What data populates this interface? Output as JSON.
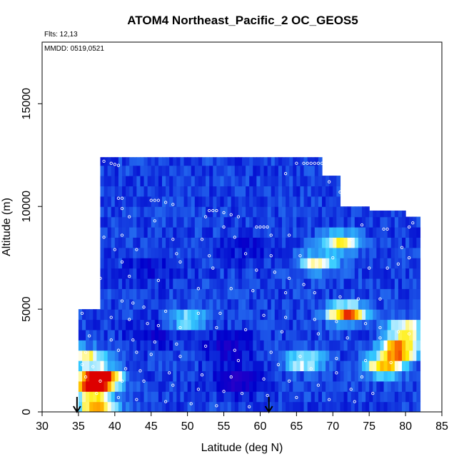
{
  "chart_data": {
    "type": "heatmap",
    "title": "ATOM4 Northeast_Pacific_2 OC_GEOS5",
    "annotations": {
      "flights": "Flts: 12,13",
      "dates": "MMDD: 0519,0521"
    },
    "xlabel": "Latitude (deg N)",
    "ylabel": "Altitude (m)",
    "xlim": [
      30,
      85
    ],
    "ylim": [
      0,
      18000
    ],
    "xticks": [
      "30",
      "35",
      "40",
      "45",
      "50",
      "55",
      "60",
      "65",
      "70",
      "75",
      "80",
      "85"
    ],
    "yticks": [
      "0",
      "5000",
      "10000",
      "15000"
    ],
    "grid": false,
    "legend": "none",
    "colormap": [
      "#2a00c8",
      "#0000cc",
      "#2266ee",
      "#33ccff",
      "#ffffff",
      "#ffee00",
      "#ff8800",
      "#dd0000"
    ],
    "arrow_markers_lat": [
      34.8,
      61.2
    ],
    "columns": [
      {
        "lat_start": 35.0,
        "lat_end": 38.0,
        "top": 5000
      },
      {
        "lat_start": 38.0,
        "lat_end": 43.0,
        "top": 12400
      },
      {
        "lat_start": 43.0,
        "lat_end": 60.5,
        "top": 12400
      },
      {
        "lat_start": 60.5,
        "lat_end": 63.5,
        "top": 12400
      },
      {
        "lat_start": 63.5,
        "lat_end": 68.5,
        "top": 12400
      },
      {
        "lat_start": 68.5,
        "lat_end": 71.0,
        "top": 11500
      },
      {
        "lat_start": 71.0,
        "lat_end": 75.0,
        "top": 10000
      },
      {
        "lat_start": 75.0,
        "lat_end": 80.0,
        "top": 9800
      },
      {
        "lat_start": 80.0,
        "lat_end": 82.0,
        "top": 9500
      }
    ],
    "hot_spots": [
      {
        "lat": 38.0,
        "alt": 1700,
        "value": 0.95
      },
      {
        "lat": 36.8,
        "alt": 1200,
        "value": 0.7
      },
      {
        "lat": 37.5,
        "alt": 300,
        "value": 0.6
      },
      {
        "lat": 72.0,
        "alt": 4800,
        "value": 0.7
      },
      {
        "lat": 79.0,
        "alt": 3000,
        "value": 0.8
      },
      {
        "lat": 77.0,
        "alt": 2200,
        "value": 0.55
      },
      {
        "lat": 71.0,
        "alt": 8300,
        "value": 0.45
      },
      {
        "lat": 68.0,
        "alt": 7300,
        "value": 0.4
      },
      {
        "lat": 80.0,
        "alt": 4000,
        "value": 0.5
      },
      {
        "lat": 50.0,
        "alt": 4500,
        "value": 0.3
      },
      {
        "lat": 36.0,
        "alt": 2700,
        "value": 0.45
      },
      {
        "lat": 66.0,
        "alt": 2500,
        "value": 0.4
      }
    ],
    "low_spots": [
      {
        "lat": 57.0,
        "alt": 1500,
        "value": 1.0
      },
      {
        "lat": 55.5,
        "alt": 3200,
        "value": 0.8
      },
      {
        "lat": 45.0,
        "alt": 3800,
        "value": 0.6
      },
      {
        "lat": 58.0,
        "alt": 8000,
        "value": 0.4
      },
      {
        "lat": 45.0,
        "alt": 7000,
        "value": 0.35
      }
    ],
    "flight_track": [
      [
        38.5,
        12200
      ],
      [
        39.5,
        12100
      ],
      [
        40.0,
        12050
      ],
      [
        40.5,
        12000
      ],
      [
        65.0,
        12100
      ],
      [
        66.0,
        12100
      ],
      [
        66.5,
        12100
      ],
      [
        67.0,
        12100
      ],
      [
        67.5,
        12100
      ],
      [
        68.0,
        12100
      ],
      [
        68.5,
        12100
      ],
      [
        69.0,
        12100
      ],
      [
        69.5,
        12100
      ],
      [
        70.0,
        12100
      ],
      [
        70.5,
        12100
      ],
      [
        71.0,
        12100
      ],
      [
        63.5,
        11600
      ],
      [
        69.5,
        11200
      ],
      [
        71.0,
        10700
      ],
      [
        40.5,
        10400
      ],
      [
        41.0,
        10400
      ],
      [
        45.0,
        10300
      ],
      [
        45.5,
        10300
      ],
      [
        46.0,
        10300
      ],
      [
        47.0,
        10200
      ],
      [
        48.0,
        10100
      ],
      [
        53.0,
        9800
      ],
      [
        53.5,
        9800
      ],
      [
        54.0,
        9800
      ],
      [
        55.0,
        9700
      ],
      [
        56.0,
        9600
      ],
      [
        57.0,
        9500
      ],
      [
        41.0,
        9900
      ],
      [
        42.0,
        9500
      ],
      [
        45.5,
        9300
      ],
      [
        52.5,
        9500
      ],
      [
        55.0,
        9000
      ],
      [
        59.5,
        9000
      ],
      [
        60.0,
        9000
      ],
      [
        60.5,
        9000
      ],
      [
        61.0,
        9000
      ],
      [
        74.0,
        9100
      ],
      [
        77.0,
        8900
      ],
      [
        77.5,
        8900
      ],
      [
        80.5,
        9000
      ],
      [
        81.0,
        9200
      ],
      [
        82.5,
        9500
      ],
      [
        38.5,
        8500
      ],
      [
        41.0,
        8600
      ],
      [
        48.0,
        8400
      ],
      [
        52.0,
        8400
      ],
      [
        56.5,
        8500
      ],
      [
        61.5,
        8600
      ],
      [
        64.0,
        8600
      ],
      [
        72.5,
        8400
      ],
      [
        79.5,
        8000
      ],
      [
        80.5,
        7500
      ],
      [
        79.0,
        7200
      ],
      [
        40.0,
        7900
      ],
      [
        43.0,
        7900
      ],
      [
        48.5,
        7700
      ],
      [
        53.0,
        7600
      ],
      [
        58.0,
        7700
      ],
      [
        61.5,
        7600
      ],
      [
        65.5,
        7600
      ],
      [
        70.0,
        7500
      ],
      [
        75.0,
        7000
      ],
      [
        77.5,
        7000
      ],
      [
        41.0,
        7300
      ],
      [
        49.0,
        7300
      ],
      [
        53.5,
        7000
      ],
      [
        59.5,
        6900
      ],
      [
        62.0,
        6800
      ],
      [
        64.0,
        6500
      ],
      [
        66.0,
        6200
      ],
      [
        38.0,
        6500
      ],
      [
        42.0,
        6600
      ],
      [
        46.0,
        6400
      ],
      [
        51.5,
        6000
      ],
      [
        56.0,
        6000
      ],
      [
        59.0,
        5900
      ],
      [
        63.5,
        5800
      ],
      [
        67.5,
        5800
      ],
      [
        71.0,
        5600
      ],
      [
        73.5,
        5500
      ],
      [
        76.5,
        5500
      ],
      [
        41.0,
        5400
      ],
      [
        42.5,
        5300
      ],
      [
        44.0,
        5100
      ],
      [
        47.0,
        4900
      ],
      [
        51.5,
        4800
      ],
      [
        54.5,
        4800
      ],
      [
        60.5,
        4700
      ],
      [
        63.5,
        4600
      ],
      [
        67.5,
        4500
      ],
      [
        70.5,
        4400
      ],
      [
        74.5,
        4300
      ],
      [
        76.5,
        4100
      ],
      [
        79.0,
        3900
      ],
      [
        80.5,
        3800
      ],
      [
        35.5,
        4800
      ],
      [
        39.5,
        4600
      ],
      [
        42.0,
        4500
      ],
      [
        44.5,
        4300
      ],
      [
        46.0,
        4200
      ],
      [
        49.0,
        4100
      ],
      [
        54.0,
        4100
      ],
      [
        58.0,
        4000
      ],
      [
        63.0,
        3900
      ],
      [
        68.0,
        3800
      ],
      [
        72.0,
        3600
      ],
      [
        76.5,
        3600
      ],
      [
        36.5,
        3700
      ],
      [
        39.5,
        3500
      ],
      [
        42.5,
        3500
      ],
      [
        45.5,
        3400
      ],
      [
        48.5,
        3300
      ],
      [
        52.5,
        3200
      ],
      [
        56.5,
        3000
      ],
      [
        61.5,
        2900
      ],
      [
        65.5,
        2700
      ],
      [
        70.5,
        2600
      ],
      [
        74.5,
        2500
      ],
      [
        78.0,
        2400
      ],
      [
        36.0,
        2900
      ],
      [
        40.5,
        3000
      ],
      [
        43.0,
        2900
      ],
      [
        45.0,
        2800
      ],
      [
        49.0,
        2700
      ],
      [
        57.0,
        2500
      ],
      [
        62.5,
        2300
      ],
      [
        67.0,
        2100
      ],
      [
        70.5,
        1900
      ],
      [
        74.0,
        1700
      ],
      [
        35.5,
        2300
      ],
      [
        37.0,
        2200
      ],
      [
        41.5,
        2100
      ],
      [
        43.5,
        2000
      ],
      [
        47.5,
        1900
      ],
      [
        52.0,
        1800
      ],
      [
        56.0,
        1700
      ],
      [
        60.5,
        1600
      ],
      [
        64.0,
        1500
      ],
      [
        68.0,
        1300
      ],
      [
        72.5,
        1100
      ],
      [
        75.5,
        900
      ],
      [
        36.0,
        1700
      ],
      [
        38.0,
        1500
      ],
      [
        41.0,
        1500
      ],
      [
        44.0,
        1500
      ],
      [
        48.0,
        1300
      ],
      [
        51.5,
        1100
      ],
      [
        55.0,
        1000
      ],
      [
        57.5,
        900
      ],
      [
        61.0,
        800
      ],
      [
        65.0,
        700
      ],
      [
        69.5,
        600
      ],
      [
        73.0,
        500
      ],
      [
        37.5,
        900
      ],
      [
        40.5,
        700
      ],
      [
        43.0,
        600
      ],
      [
        47.0,
        500
      ],
      [
        50.5,
        400
      ],
      [
        54.0,
        300
      ],
      [
        58.5,
        250
      ]
    ]
  }
}
